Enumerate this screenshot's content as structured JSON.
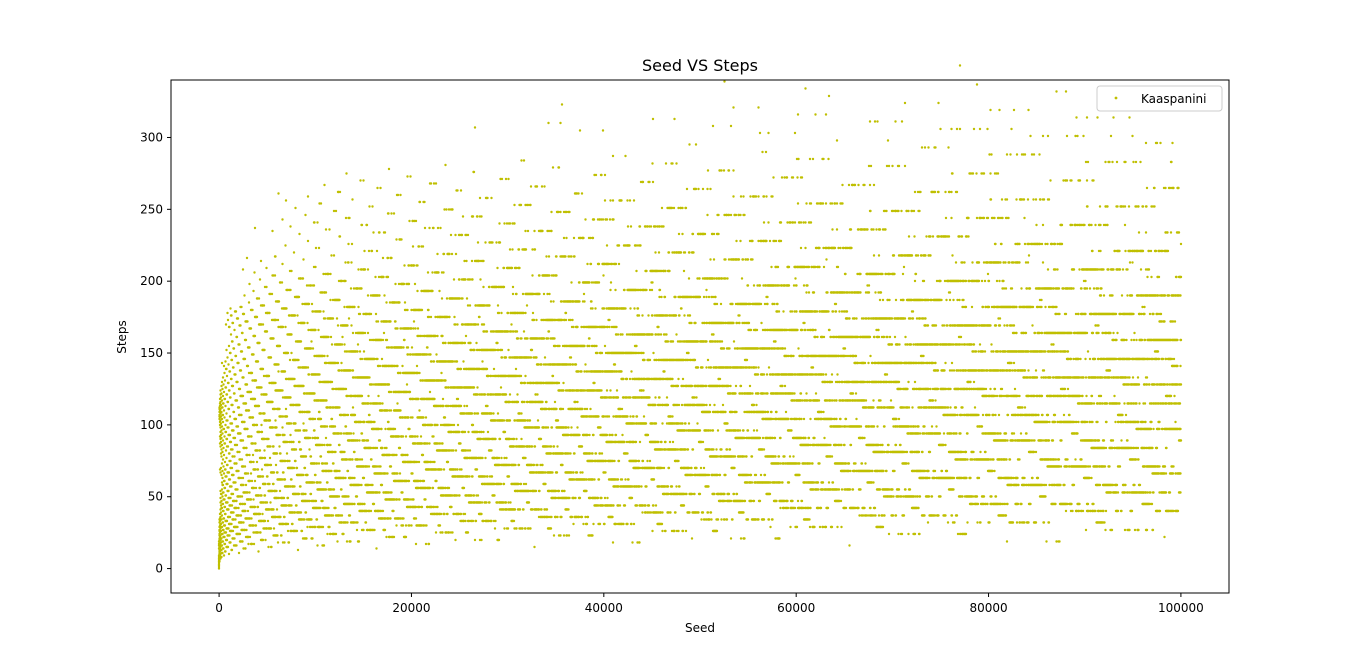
{
  "chart_data": {
    "type": "scatter",
    "title": "Seed VS Steps",
    "xlabel": "Seed",
    "ylabel": "Steps",
    "xlim": [
      -5000,
      105000
    ],
    "ylim": [
      -17,
      340
    ],
    "xticks": [
      0,
      20000,
      40000,
      60000,
      80000,
      100000
    ],
    "yticks": [
      0,
      50,
      100,
      150,
      200,
      250,
      300
    ],
    "grid": false,
    "legend_position": "top-right",
    "marker_color": "#bfbf00",
    "series": [
      {
        "name": "Kaaspanini",
        "n_points": 100000,
        "x_range": [
          1,
          100000
        ],
        "y_range": [
          0,
          325
        ]
      }
    ]
  }
}
